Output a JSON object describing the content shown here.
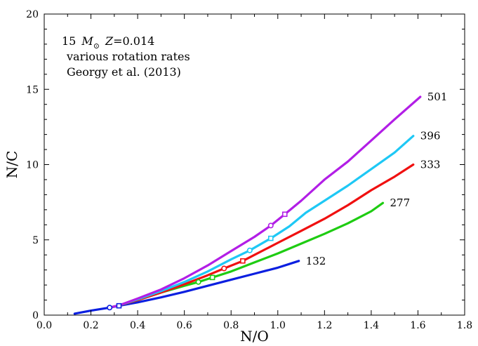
{
  "chart_data": {
    "type": "line",
    "title": "",
    "xlabel": "N/O",
    "ylabel": "N/C",
    "xlim": [
      0.0,
      1.8
    ],
    "ylim": [
      0,
      20
    ],
    "x_ticks": [
      "0.0",
      "0.2",
      "0.4",
      "0.6",
      "0.8",
      "1.0",
      "1.2",
      "1.4",
      "1.6",
      "1.8"
    ],
    "y_ticks": [
      "0",
      "5",
      "10",
      "15",
      "20"
    ],
    "grid": false,
    "legend": "none",
    "annotation": {
      "line1_prefix": "15",
      "line1_var": "M",
      "line1_sub": "⊙",
      "line1_z": "Z",
      "line1_zval": "=0.014",
      "line2": "various rotation rates",
      "line3": "Georgy et al. (2013)"
    },
    "series": [
      {
        "name": "132",
        "color": "#0b1fe0",
        "points": [
          [
            0.13,
            0.1
          ],
          [
            0.2,
            0.3
          ],
          [
            0.28,
            0.5
          ],
          [
            0.32,
            0.62
          ],
          [
            0.4,
            0.85
          ],
          [
            0.5,
            1.18
          ],
          [
            0.6,
            1.55
          ],
          [
            0.7,
            1.95
          ],
          [
            0.8,
            2.35
          ],
          [
            0.9,
            2.75
          ],
          [
            1.0,
            3.15
          ],
          [
            1.09,
            3.6
          ]
        ],
        "markers": [
          {
            "x": 0.28,
            "y": 0.5,
            "shape": "circle"
          },
          {
            "x": 0.32,
            "y": 0.62,
            "shape": "square"
          }
        ]
      },
      {
        "name": "277",
        "color": "#1ecc12",
        "points": [
          [
            0.28,
            0.5
          ],
          [
            0.32,
            0.65
          ],
          [
            0.4,
            1.0
          ],
          [
            0.5,
            1.5
          ],
          [
            0.6,
            1.95
          ],
          [
            0.66,
            2.2
          ],
          [
            0.72,
            2.5
          ],
          [
            0.8,
            2.9
          ],
          [
            0.9,
            3.5
          ],
          [
            1.0,
            4.1
          ],
          [
            1.1,
            4.75
          ],
          [
            1.2,
            5.4
          ],
          [
            1.3,
            6.1
          ],
          [
            1.4,
            6.9
          ],
          [
            1.45,
            7.45
          ]
        ],
        "markers": [
          {
            "x": 0.66,
            "y": 2.2,
            "shape": "circle"
          },
          {
            "x": 0.72,
            "y": 2.5,
            "shape": "square"
          }
        ]
      },
      {
        "name": "333",
        "color": "#f01010",
        "points": [
          [
            0.28,
            0.5
          ],
          [
            0.32,
            0.65
          ],
          [
            0.4,
            1.0
          ],
          [
            0.5,
            1.5
          ],
          [
            0.6,
            2.05
          ],
          [
            0.7,
            2.65
          ],
          [
            0.77,
            3.1
          ],
          [
            0.85,
            3.6
          ],
          [
            0.9,
            4.0
          ],
          [
            1.0,
            4.8
          ],
          [
            1.1,
            5.6
          ],
          [
            1.2,
            6.4
          ],
          [
            1.3,
            7.3
          ],
          [
            1.4,
            8.3
          ],
          [
            1.5,
            9.2
          ],
          [
            1.58,
            10.0
          ]
        ],
        "markers": [
          {
            "x": 0.77,
            "y": 3.1,
            "shape": "circle"
          },
          {
            "x": 0.85,
            "y": 3.6,
            "shape": "square"
          }
        ]
      },
      {
        "name": "396",
        "color": "#1ec8f5",
        "points": [
          [
            0.28,
            0.5
          ],
          [
            0.32,
            0.65
          ],
          [
            0.4,
            1.05
          ],
          [
            0.5,
            1.6
          ],
          [
            0.6,
            2.2
          ],
          [
            0.7,
            2.9
          ],
          [
            0.8,
            3.7
          ],
          [
            0.88,
            4.3
          ],
          [
            0.97,
            5.1
          ],
          [
            1.05,
            5.9
          ],
          [
            1.12,
            6.8
          ],
          [
            1.2,
            7.6
          ],
          [
            1.3,
            8.6
          ],
          [
            1.4,
            9.7
          ],
          [
            1.5,
            10.8
          ],
          [
            1.58,
            11.9
          ]
        ],
        "markers": [
          {
            "x": 0.88,
            "y": 4.3,
            "shape": "circle"
          },
          {
            "x": 0.97,
            "y": 5.1,
            "shape": "square"
          }
        ]
      },
      {
        "name": "501",
        "color": "#b21ee6",
        "points": [
          [
            0.28,
            0.5
          ],
          [
            0.32,
            0.65
          ],
          [
            0.4,
            1.1
          ],
          [
            0.5,
            1.7
          ],
          [
            0.6,
            2.45
          ],
          [
            0.7,
            3.3
          ],
          [
            0.8,
            4.25
          ],
          [
            0.9,
            5.2
          ],
          [
            0.97,
            5.95
          ],
          [
            1.03,
            6.7
          ],
          [
            1.1,
            7.6
          ],
          [
            1.2,
            9.0
          ],
          [
            1.3,
            10.2
          ],
          [
            1.4,
            11.6
          ],
          [
            1.5,
            13.0
          ],
          [
            1.61,
            14.5
          ]
        ],
        "markers": [
          {
            "x": 0.97,
            "y": 5.95,
            "shape": "circle"
          },
          {
            "x": 1.03,
            "y": 6.7,
            "shape": "square"
          }
        ]
      }
    ]
  }
}
